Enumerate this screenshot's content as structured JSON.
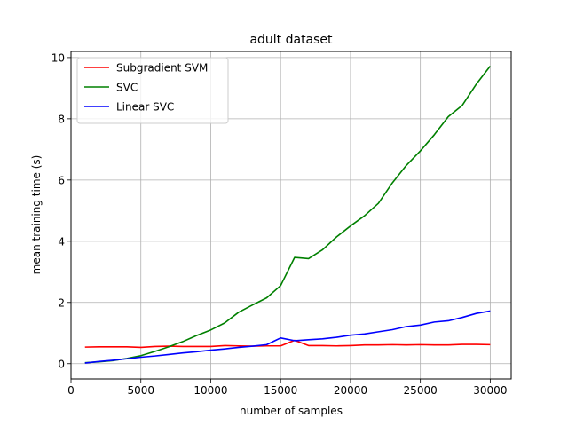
{
  "chart_data": {
    "type": "line",
    "title": "adult dataset",
    "xlabel": "number of samples",
    "ylabel": "mean training time (s)",
    "xlim": [
      0,
      31500
    ],
    "ylim": [
      -0.5,
      10.2
    ],
    "xticks": [
      0,
      5000,
      10000,
      15000,
      20000,
      25000,
      30000
    ],
    "yticks": [
      0,
      2,
      4,
      6,
      8,
      10
    ],
    "xtick_labels": [
      "0",
      "5000",
      "10000",
      "15000",
      "20000",
      "25000",
      "30000"
    ],
    "ytick_labels": [
      "0",
      "2",
      "4",
      "6",
      "8",
      "10"
    ],
    "grid": true,
    "legend_position": "top-left",
    "x": [
      1000,
      2000,
      3000,
      4000,
      5000,
      6000,
      7000,
      8000,
      9000,
      10000,
      11000,
      12000,
      13000,
      14000,
      15000,
      16000,
      17000,
      18000,
      19000,
      20000,
      21000,
      22000,
      23000,
      24000,
      25000,
      26000,
      27000,
      28000,
      29000,
      30000
    ],
    "series": [
      {
        "name": "Subgradient SVM",
        "color": "#ff0000",
        "values": [
          0.54,
          0.55,
          0.55,
          0.55,
          0.53,
          0.56,
          0.57,
          0.56,
          0.56,
          0.56,
          0.59,
          0.58,
          0.57,
          0.58,
          0.58,
          0.76,
          0.59,
          0.59,
          0.58,
          0.59,
          0.61,
          0.61,
          0.62,
          0.61,
          0.62,
          0.61,
          0.61,
          0.63,
          0.63,
          0.62
        ]
      },
      {
        "name": "SVC",
        "color": "#008000",
        "values": [
          0.03,
          0.06,
          0.1,
          0.17,
          0.26,
          0.4,
          0.55,
          0.72,
          0.92,
          1.1,
          1.33,
          1.68,
          1.92,
          2.15,
          2.55,
          3.47,
          3.43,
          3.72,
          4.14,
          4.5,
          4.83,
          5.24,
          5.91,
          6.48,
          6.95,
          7.48,
          8.07,
          8.44,
          9.13,
          9.72
        ]
      },
      {
        "name": "Linear SVC",
        "color": "#0000ff",
        "values": [
          0.02,
          0.07,
          0.11,
          0.16,
          0.21,
          0.25,
          0.3,
          0.35,
          0.39,
          0.44,
          0.48,
          0.53,
          0.57,
          0.62,
          0.84,
          0.75,
          0.78,
          0.81,
          0.86,
          0.93,
          0.97,
          1.04,
          1.11,
          1.21,
          1.26,
          1.36,
          1.4,
          1.51,
          1.64,
          1.72
        ]
      }
    ]
  }
}
